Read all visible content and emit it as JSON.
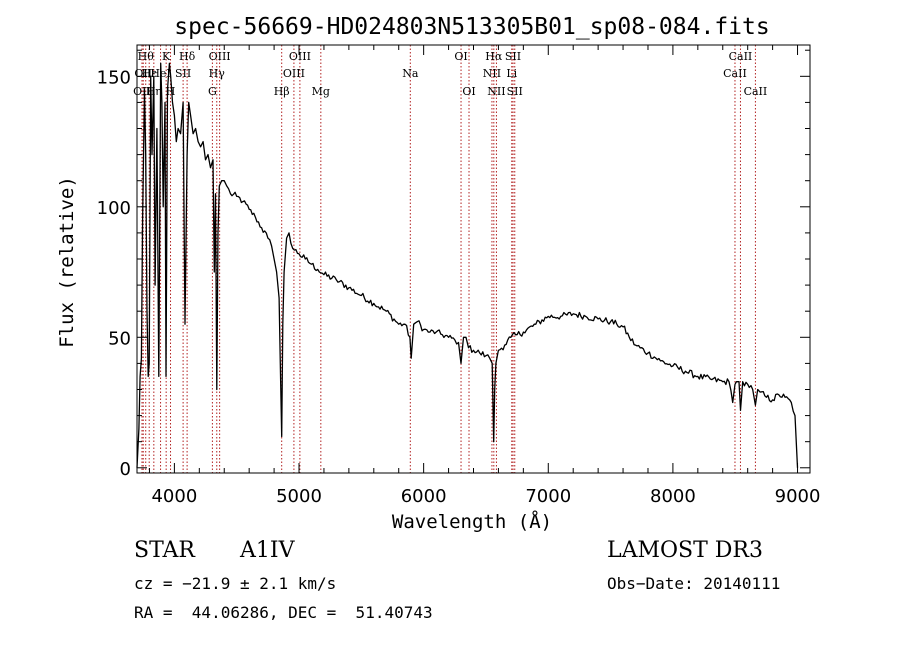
{
  "chart_data": {
    "type": "line",
    "title": "spec-56669-HD024803N513305B01_sp08-084.fits",
    "xlabel": "Wavelength (Å)",
    "ylabel": "Flux (relative)",
    "xlim": [
      3700,
      9100
    ],
    "ylim": [
      -2,
      162
    ],
    "xticks": [
      4000,
      5000,
      6000,
      7000,
      8000,
      9000
    ],
    "yticks": [
      0,
      50,
      100,
      150
    ],
    "grid": false,
    "series": [
      {
        "name": "spectrum",
        "x": [
          3700,
          3715,
          3725,
          3735,
          3745,
          3760,
          3770,
          3780,
          3790,
          3798,
          3810,
          3820,
          3835,
          3845,
          3860,
          3875,
          3890,
          3900,
          3910,
          3925,
          3933,
          3945,
          3960,
          3970,
          3985,
          4000,
          4015,
          4030,
          4050,
          4070,
          4085,
          4102,
          4115,
          4130,
          4150,
          4170,
          4190,
          4210,
          4230,
          4250,
          4270,
          4290,
          4310,
          4320,
          4330,
          4340,
          4350,
          4360,
          4380,
          4400,
          4420,
          4450,
          4500,
          4550,
          4600,
          4650,
          4700,
          4750,
          4780,
          4800,
          4820,
          4840,
          4850,
          4861,
          4870,
          4880,
          4900,
          4920,
          4950,
          5000,
          5050,
          5100,
          5150,
          5200,
          5300,
          5400,
          5500,
          5600,
          5700,
          5800,
          5850,
          5890,
          5900,
          5920,
          5950,
          6000,
          6050,
          6100,
          6150,
          6200,
          6250,
          6280,
          6300,
          6320,
          6340,
          6360,
          6400,
          6450,
          6500,
          6530,
          6550,
          6562,
          6570,
          6580,
          6600,
          6650,
          6700,
          6750,
          6800,
          6900,
          7000,
          7100,
          7200,
          7300,
          7400,
          7500,
          7550,
          7600,
          7650,
          7700,
          7800,
          7900,
          8000,
          8100,
          8200,
          8300,
          8400,
          8450,
          8480,
          8498,
          8510,
          8530,
          8542,
          8560,
          8600,
          8640,
          8662,
          8680,
          8700,
          8750,
          8800,
          8850,
          8900,
          8950,
          8980,
          9000
        ],
        "values": [
          0,
          15,
          35,
          42,
          95,
          145,
          120,
          60,
          35,
          40,
          150,
          120,
          150,
          70,
          130,
          35,
          155,
          140,
          100,
          140,
          35,
          145,
          155,
          150,
          140,
          135,
          125,
          130,
          128,
          140,
          55,
          120,
          140,
          135,
          128,
          130,
          125,
          123,
          125,
          118,
          120,
          115,
          118,
          75,
          105,
          30,
          90,
          108,
          110,
          110,
          108,
          105,
          104,
          102,
          99,
          96,
          92,
          88,
          85,
          80,
          75,
          65,
          40,
          12,
          55,
          75,
          88,
          90,
          84,
          82,
          80,
          78,
          76,
          74,
          72,
          69,
          66,
          63,
          60,
          55,
          55,
          50,
          42,
          55,
          56,
          53,
          52,
          52,
          51,
          50,
          49,
          48,
          40,
          50,
          50,
          46,
          45,
          44,
          43,
          42,
          40,
          10,
          30,
          40,
          45,
          47,
          50,
          51,
          52,
          55,
          58,
          58,
          59,
          58,
          57,
          56,
          55,
          54,
          50,
          47,
          44,
          41,
          39,
          37,
          35,
          34,
          33,
          33,
          25,
          32,
          33,
          33,
          22,
          33,
          32,
          30,
          24,
          30,
          29,
          27,
          26,
          28,
          27,
          25,
          20,
          0
        ]
      }
    ],
    "line_markers": [
      {
        "wavelength": 3770,
        "label": "Hθ",
        "row": 0
      },
      {
        "wavelength": 3750,
        "label": "OII",
        "row": 1
      },
      {
        "wavelength": 3740,
        "label": "OII",
        "row": 2
      },
      {
        "wavelength": 3798,
        "label": "Hε",
        "row": 1
      },
      {
        "wavelength": 3835,
        "label": "Hη",
        "row": 2
      },
      {
        "wavelength": 3934,
        "label": "K",
        "row": 0
      },
      {
        "wavelength": 3889,
        "label": "HeI",
        "row": 1
      },
      {
        "wavelength": 3969,
        "label": "H",
        "row": 2
      },
      {
        "wavelength": 4102,
        "label": "Hδ",
        "row": 0
      },
      {
        "wavelength": 4070,
        "label": "SII",
        "row": 1
      },
      {
        "wavelength": 4363,
        "label": "OIII",
        "row": 0
      },
      {
        "wavelength": 4340,
        "label": "Hγ",
        "row": 1
      },
      {
        "wavelength": 4305,
        "label": "G",
        "row": 2
      },
      {
        "wavelength": 5007,
        "label": "OIII",
        "row": 0
      },
      {
        "wavelength": 4959,
        "label": "OIII",
        "row": 1
      },
      {
        "wavelength": 4861,
        "label": "Hβ",
        "row": 2
      },
      {
        "wavelength": 5175,
        "label": "Mg",
        "row": 2
      },
      {
        "wavelength": 5893,
        "label": "Na",
        "row": 1
      },
      {
        "wavelength": 6300,
        "label": "OI",
        "row": 0
      },
      {
        "wavelength": 6364,
        "label": "OI",
        "row": 2
      },
      {
        "wavelength": 6563,
        "label": "Hα",
        "row": 0
      },
      {
        "wavelength": 6548,
        "label": "NII",
        "row": 1
      },
      {
        "wavelength": 6584,
        "label": "NII",
        "row": 2
      },
      {
        "wavelength": 6717,
        "label": "SII",
        "row": 0
      },
      {
        "wavelength": 6707,
        "label": "Li",
        "row": 1
      },
      {
        "wavelength": 6731,
        "label": "SII",
        "row": 2
      },
      {
        "wavelength": 8542,
        "label": "CaII",
        "row": 0
      },
      {
        "wavelength": 8498,
        "label": "CaII",
        "row": 1
      },
      {
        "wavelength": 8662,
        "label": "CaII",
        "row": 2
      }
    ],
    "marker_color": "#b22222"
  },
  "footer": {
    "object_type": "STAR",
    "spectral_class": "A1IV",
    "cz": "cz = −21.9 ± 2.1 km/s",
    "coords": "RA =  44.06286, DEC =  51.40743",
    "survey": "LAMOST DR3",
    "obs_date": "Obs−Date: 20140111"
  }
}
